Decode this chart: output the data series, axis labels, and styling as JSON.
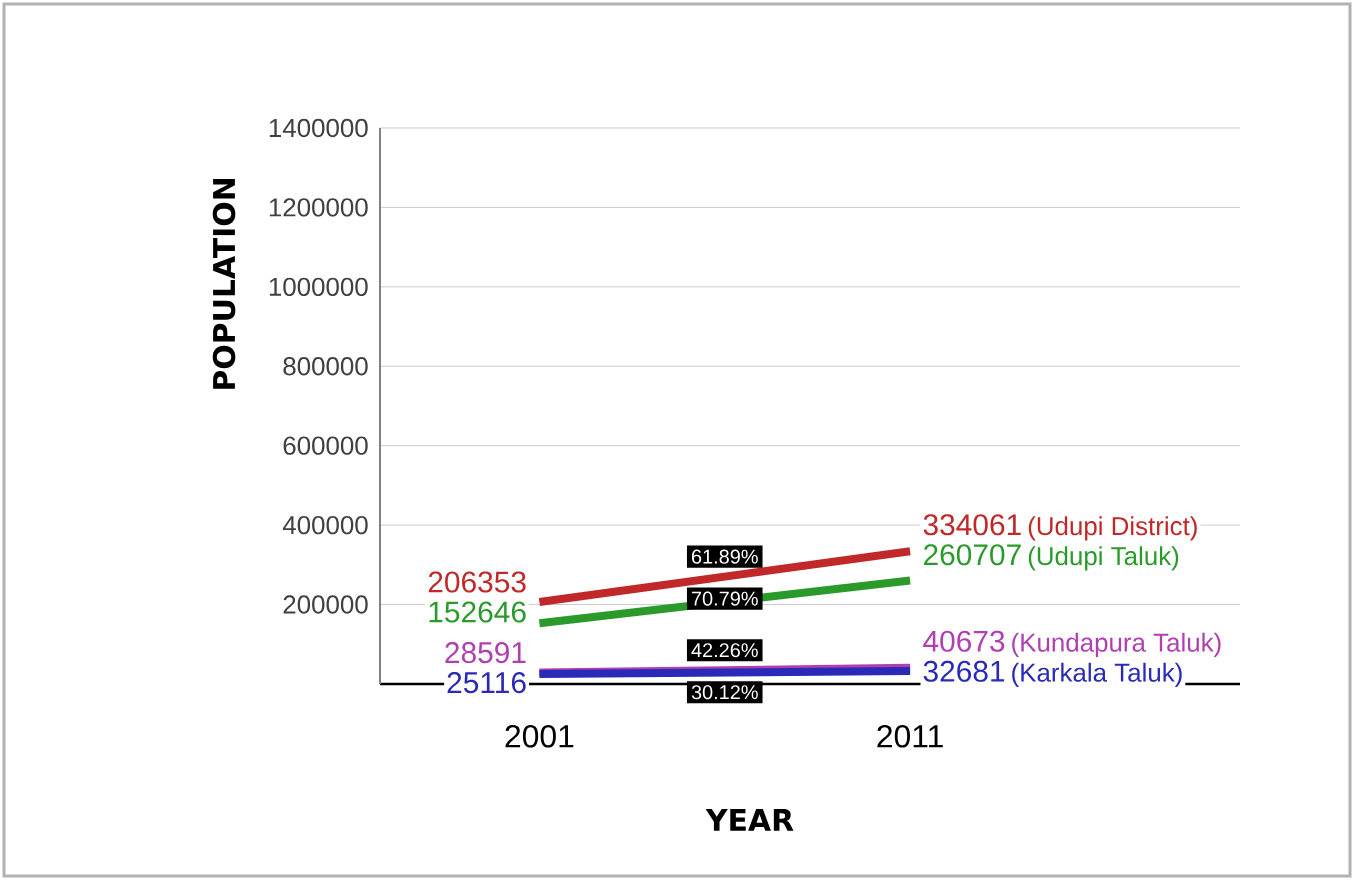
{
  "chart_data": {
    "type": "line",
    "xlabel": "YEAR",
    "ylabel": "POPULATION",
    "categories": [
      "2001",
      "2011"
    ],
    "series": [
      {
        "name": "(Udupi District)",
        "color": "#c0282a",
        "values": [
          206353,
          334061
        ]
      },
      {
        "name": "(Udupi Taluk)",
        "color": "#2a9a2a",
        "values": [
          152646,
          260707
        ]
      },
      {
        "name": "(Kundapura Taluk)",
        "color": "#b040b0",
        "values": [
          28591,
          40673
        ]
      },
      {
        "name": "(Karkala Taluk)",
        "color": "#2a2ab8",
        "values": [
          25116,
          32681
        ]
      }
    ],
    "ylim": [
      0,
      1400000
    ],
    "yticks": [
      200000,
      400000,
      600000,
      800000,
      1000000,
      1200000,
      1400000
    ],
    "grid": "y",
    "data_labels": true,
    "marker": "none",
    "line_style": "solid",
    "annotations": [
      "61.89%",
      "70.79%",
      "42.26%",
      "30.12%"
    ]
  }
}
